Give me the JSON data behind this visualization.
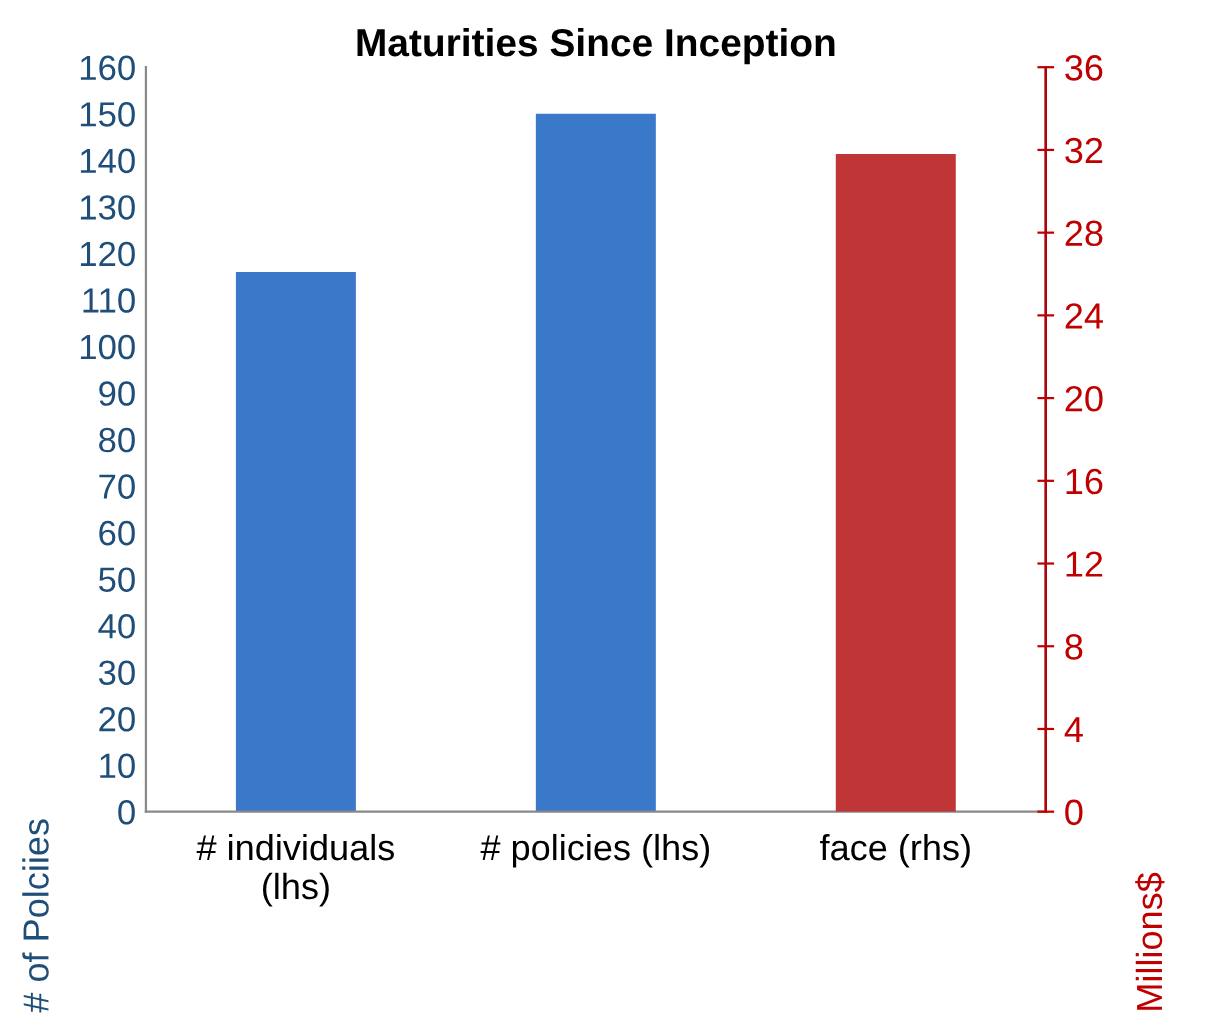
{
  "chart_data": {
    "type": "bar",
    "title": "Maturities Since Inception",
    "ylabel": "# of Polciies",
    "y2label": "Millions$",
    "categories": [
      "# individuals\n(lhs)",
      "# policies (lhs)",
      "face (rhs)"
    ],
    "series": [
      {
        "color": "#3a78c9",
        "values": [
          116,
          150,
          null
        ]
      },
      {
        "color": "#c03536",
        "values": [
          null,
          null,
          31.8
        ],
        "axis": "y2"
      }
    ],
    "ylim": [
      0,
      160
    ],
    "yticks": [
      0,
      10,
      20,
      30,
      40,
      50,
      60,
      70,
      80,
      90,
      100,
      110,
      120,
      130,
      140,
      150,
      160
    ],
    "y2lim": [
      0,
      36
    ],
    "y2ticks": [
      0,
      4,
      8,
      12,
      16,
      20,
      24,
      28,
      32,
      36
    ],
    "grid": false,
    "legend": false
  }
}
